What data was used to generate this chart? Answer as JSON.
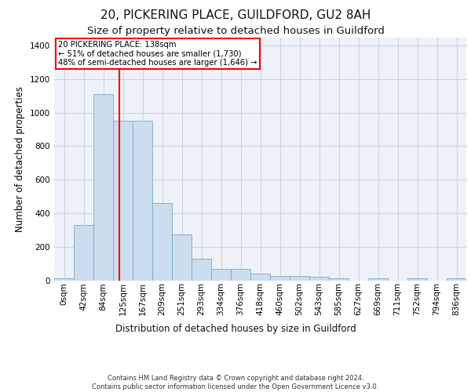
{
  "title": "20, PICKERING PLACE, GUILDFORD, GU2 8AH",
  "subtitle": "Size of property relative to detached houses in Guildford",
  "xlabel": "Distribution of detached houses by size in Guildford",
  "ylabel": "Number of detached properties",
  "bin_labels": [
    "0sqm",
    "42sqm",
    "84sqm",
    "125sqm",
    "167sqm",
    "209sqm",
    "251sqm",
    "293sqm",
    "334sqm",
    "376sqm",
    "418sqm",
    "460sqm",
    "502sqm",
    "543sqm",
    "585sqm",
    "627sqm",
    "669sqm",
    "711sqm",
    "752sqm",
    "794sqm",
    "836sqm"
  ],
  "bar_heights": [
    10,
    330,
    1110,
    950,
    950,
    460,
    275,
    130,
    70,
    70,
    40,
    25,
    25,
    20,
    10,
    0,
    10,
    0,
    10,
    0,
    10
  ],
  "bar_color": "#ccdded",
  "bar_edge_color": "#7aa8cc",
  "red_line_x": 3.31,
  "ylim": [
    0,
    1450
  ],
  "yticks": [
    0,
    200,
    400,
    600,
    800,
    1000,
    1200,
    1400
  ],
  "annotation_title": "20 PICKERING PLACE: 138sqm",
  "annotation_line1": "← 51% of detached houses are smaller (1,730)",
  "annotation_line2": "48% of semi-detached houses are larger (1,646) →",
  "footer_line1": "Contains HM Land Registry data © Crown copyright and database right 2024.",
  "footer_line2": "Contains public sector information licensed under the Open Government Licence v3.0.",
  "bg_color": "#eef2f8",
  "grid_color": "#c8d4e4",
  "title_fontsize": 11,
  "subtitle_fontsize": 9.5,
  "axis_label_fontsize": 8.5,
  "tick_fontsize": 7.5,
  "footer_fontsize": 6.0
}
